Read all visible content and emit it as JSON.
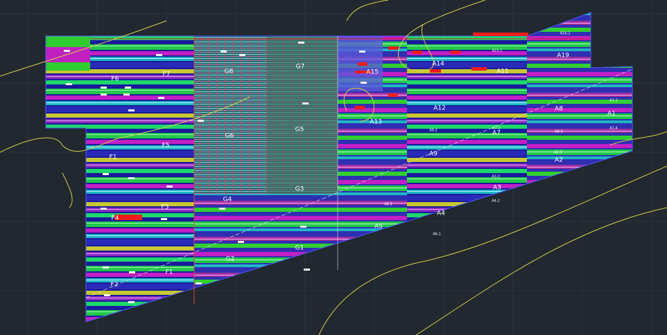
{
  "drawing": {
    "labels": [
      "F6",
      "F7",
      "F5",
      "F1",
      "F3",
      "F4",
      "F2",
      "F1",
      "G8",
      "G7",
      "G6",
      "G5",
      "G4",
      "G3",
      "G2",
      "G1",
      "A16-2",
      "A15-1",
      "A19",
      "A15",
      "A14",
      "A11",
      "A12",
      "A13",
      "A9",
      "A7",
      "A8",
      "A1",
      "A2",
      "A3",
      "A4",
      "A5",
      "A9-2",
      "A7-2",
      "A8-3",
      "A1-3",
      "A1-4",
      "A2-3",
      "A3-3",
      "A4-2",
      "A5-3",
      "A6-1"
    ]
  }
}
